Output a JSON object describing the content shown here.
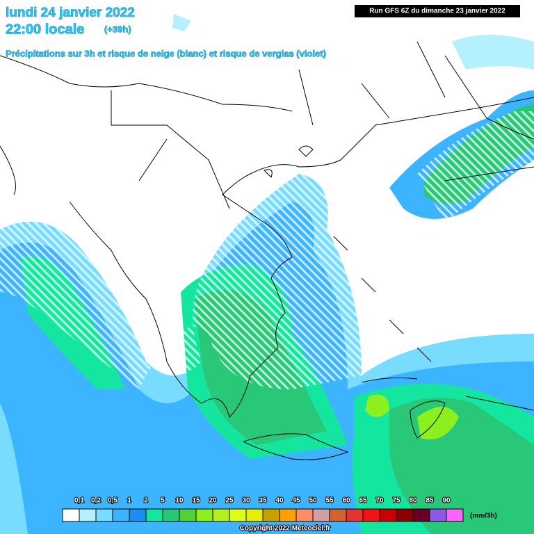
{
  "header": {
    "date": "lundi 24 janvier 2022",
    "time": "22:00 locale",
    "offset": "(+39h)",
    "subtitle": "Précipitations sur 3h et risque de neige (blanc) et risque de verglas (violet)",
    "run": "Run GFS 6Z du dimanche 23 janvier 2022"
  },
  "legend": {
    "labels": [
      "0,1",
      "0,2",
      "0,5",
      "1",
      "2",
      "5",
      "10",
      "15",
      "20",
      "25",
      "30",
      "35",
      "40",
      "45",
      "50",
      "55",
      "60",
      "65",
      "70",
      "75",
      "80",
      "85",
      "90"
    ],
    "colors": [
      "#ffffff",
      "#b4f0ff",
      "#78dcff",
      "#3cb4ff",
      "#1e8cf0",
      "#14e6a0",
      "#28c878",
      "#50d23c",
      "#8cf01e",
      "#b4f01e",
      "#dcff14",
      "#e6f000",
      "#c8a000",
      "#ffa000",
      "#ff8c64",
      "#d2a0a0",
      "#d26432",
      "#e63232",
      "#f01414",
      "#c80000",
      "#8c0000",
      "#640028",
      "#8c5ae6",
      "#ff64ff"
    ],
    "unit": "(mm/3h)"
  },
  "footer": {
    "copyright": "Copyright 2022 Meteociel.fr"
  }
}
